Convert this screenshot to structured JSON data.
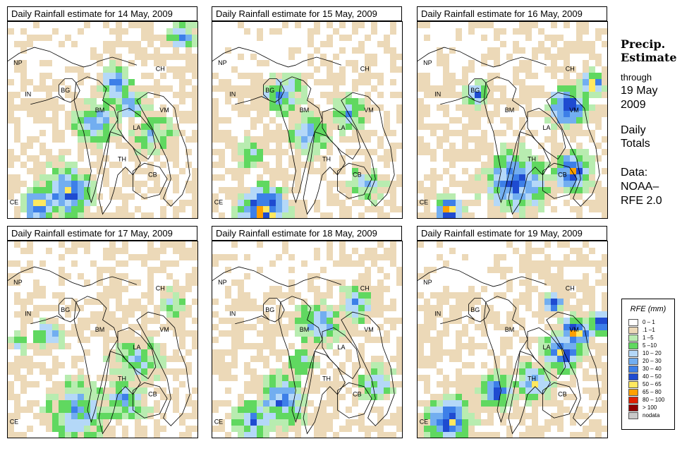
{
  "panels": [
    {
      "title": "Daily Rainfall estimate for  14 May, 2009",
      "date": "14 May, 2009"
    },
    {
      "title": "Daily Rainfall estimate for  15 May, 2009",
      "date": "15 May, 2009"
    },
    {
      "title": "Daily Rainfall estimate for  16 May, 2009",
      "date": "16 May, 2009"
    },
    {
      "title": "Daily Rainfall estimate for  17 May, 2009",
      "date": "17 May, 2009"
    },
    {
      "title": "Daily Rainfall estimate for  18 May, 2009",
      "date": "18 May, 2009"
    },
    {
      "title": "Daily Rainfall estimate for  19 May, 2009",
      "date": "19 May, 2009"
    }
  ],
  "country_labels": {
    "np": "NP",
    "ch": "CH",
    "in": "IN",
    "bg": "BG",
    "bm": "BM",
    "vm": "VM",
    "la": "LA",
    "th": "TH",
    "cb": "CB",
    "ce": "CE"
  },
  "sidebar": {
    "heading_line1": "Precip.",
    "heading_line2": "Estimate",
    "through": "through",
    "date_line1": "19 May",
    "date_line2": "2009",
    "daily_line1": "Daily",
    "daily_line2": "Totals",
    "data_line1": "Data:",
    "data_line2": "NOAA–",
    "data_line3": "RFE 2.0"
  },
  "legend": {
    "title": "RFE (mm)",
    "items": [
      {
        "label": "0 – 1",
        "color": "#ffffff"
      },
      {
        "label": ".1 –1",
        "color": "#ecd9b8"
      },
      {
        "label": "1 –5",
        "color": "#b8ecb0"
      },
      {
        "label": "5 –10",
        "color": "#60d860"
      },
      {
        "label": "10 – 20",
        "color": "#b4d8f8"
      },
      {
        "label": "20 – 30",
        "color": "#72aef0"
      },
      {
        "label": "30 – 40",
        "color": "#3d7fe8"
      },
      {
        "label": "40 – 50",
        "color": "#1f4bd0"
      },
      {
        "label": "50 – 65",
        "color": "#ffe860"
      },
      {
        "label": "65 – 80",
        "color": "#ffa000"
      },
      {
        "label": "80 – 100",
        "color": "#e02000"
      },
      {
        "label": "> 100",
        "color": "#900000"
      },
      {
        "label": "nodata",
        "color": "#c8c8c8"
      }
    ]
  }
}
